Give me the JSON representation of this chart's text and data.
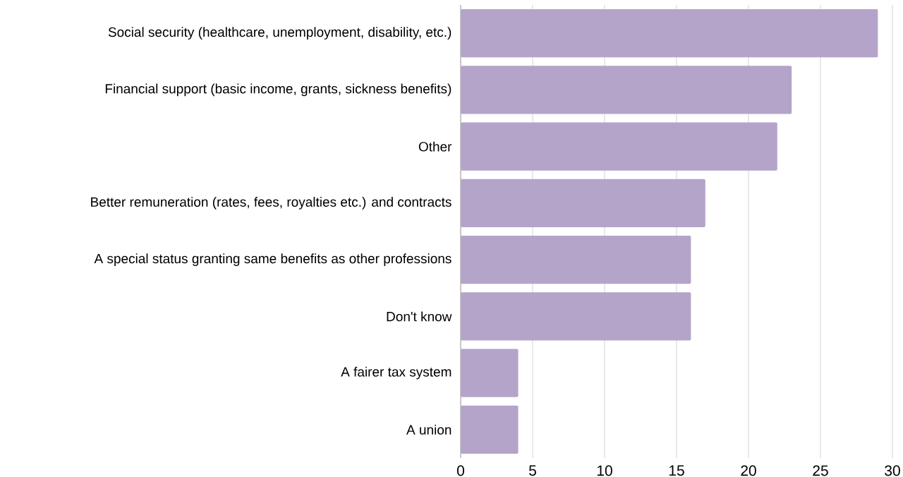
{
  "chart_data": {
    "type": "bar",
    "orientation": "horizontal",
    "categories": [
      "Social security (healthcare, unemployment, disability, etc.)",
      "Financial support (basic income, grants, sickness benefits)",
      "Other",
      "Better remuneration (rates, fees, royalties etc.) and contracts",
      "A special status granting same benefits as other professions",
      "Don't know",
      "A fairer tax system",
      "A union"
    ],
    "values": [
      29,
      23,
      22,
      17,
      16,
      16,
      4,
      4
    ],
    "color": "#b5a4c9",
    "xlim": [
      0,
      30
    ],
    "xticks": [
      0,
      5,
      10,
      15,
      20,
      25,
      30
    ],
    "grid": "x"
  }
}
